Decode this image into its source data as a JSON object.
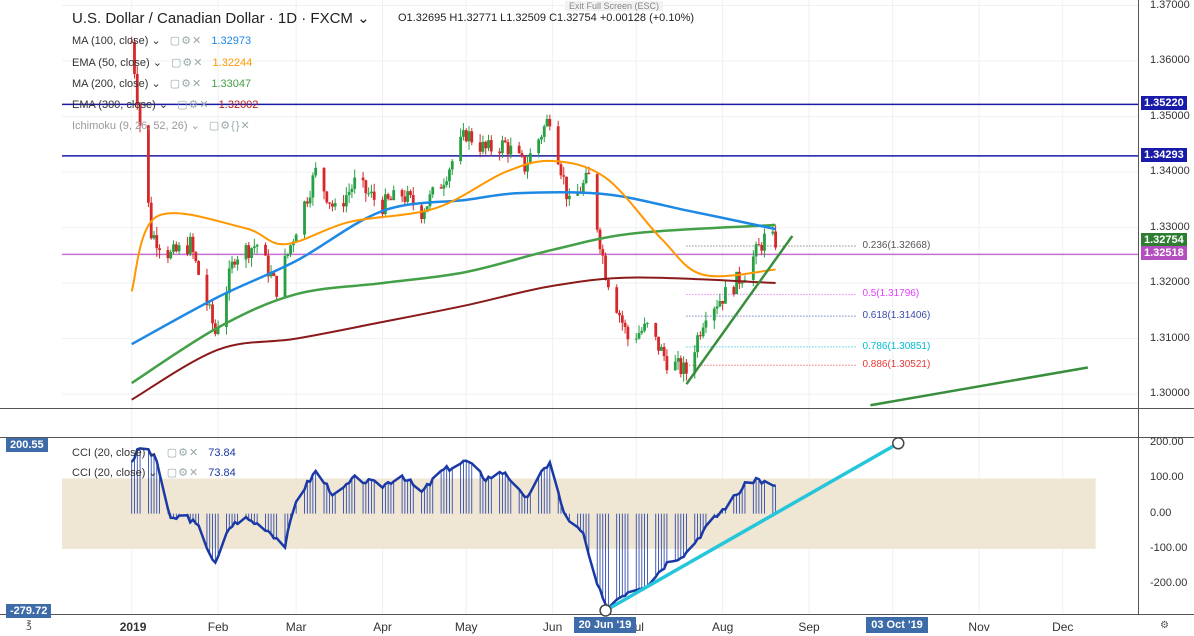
{
  "header": {
    "symbol": "U.S. Dollar / Canadian Dollar · 1D · FXCM",
    "ohlc": "O1.32695   H1.32771   L1.32509   C1.32754   +0.00128 (+0.10%)",
    "exit_full_screen": "Exit Full Screen (ESC)"
  },
  "indicators": [
    {
      "label": "MA (100, close)",
      "value": "1.32973",
      "color": "#1e88e5"
    },
    {
      "label": "EMA (50, close)",
      "value": "1.32244",
      "color": "#ff9800"
    },
    {
      "label": "MA (200, close)",
      "value": "1.33047",
      "color": "#43a047"
    },
    {
      "label": "EMA (300, close)",
      "value": "1.32002",
      "color": "#b71c1c"
    },
    {
      "label": "Ichimoku (9, 26, 52, 26)",
      "value": "",
      "color": "#888888"
    }
  ],
  "lower_indicators": [
    {
      "label": "CCI (20, close)",
      "value": "73.84"
    },
    {
      "label": "CCI (20, close)",
      "value": "73.84"
    }
  ],
  "price_axis": {
    "ticks": [
      "1.37000",
      "1.36000",
      "1.35000",
      "1.34000",
      "1.33000",
      "1.32000",
      "1.31000",
      "1.30000"
    ],
    "badges": [
      {
        "text": "1.35220",
        "color": "#1a1aa8",
        "price": 1.3522
      },
      {
        "text": "1.34293",
        "color": "#1a1aa8",
        "price": 1.34293
      },
      {
        "text": "1.32754",
        "color": "#2e7d32",
        "price": 1.32754
      },
      {
        "text": "1.32518",
        "color": "#b44fc0",
        "price": 1.32518
      }
    ]
  },
  "cci_axis": {
    "ticks": [
      "200.00",
      "100.00",
      "0.00",
      "-100.00",
      "-200.00"
    ],
    "left_badges": [
      "200.55",
      "-279.72"
    ]
  },
  "time_axis": {
    "labels": [
      "2019",
      "Feb",
      "Mar",
      "Apr",
      "May",
      "Jun",
      "Jul",
      "Aug",
      "Sep",
      "Oct",
      "Nov",
      "Dec"
    ],
    "badges": [
      "20 Jun '19",
      "03 Oct '19"
    ]
  },
  "fibonacci": [
    {
      "label": "0.236(1.32668)",
      "color": "#555555"
    },
    {
      "label": "0.5(1.31796)",
      "color": "#e040fb"
    },
    {
      "label": "0.618(1.31406)",
      "color": "#3949ab"
    },
    {
      "label": "0.786(1.30851)",
      "color": "#00bcd4"
    },
    {
      "label": "0.886(1.30521)",
      "color": "#e53935"
    }
  ],
  "chart_data": {
    "type": "candlestick",
    "title": "U.S. Dollar / Canadian Dollar · 1D · FXCM",
    "ylim": [
      1.2975,
      1.371
    ],
    "horizontal_levels": [
      1.3522,
      1.34293,
      1.32518
    ],
    "fib_levels": [
      1.32668,
      1.31796,
      1.31406,
      1.30851,
      1.30521
    ],
    "close_path": [
      [
        "2019-01-01",
        1.3635
      ],
      [
        "2019-01-08",
        1.329
      ],
      [
        "2019-01-15",
        1.325
      ],
      [
        "2019-01-22",
        1.327
      ],
      [
        "2019-01-31",
        1.311
      ],
      [
        "2019-02-07",
        1.325
      ],
      [
        "2019-02-15",
        1.327
      ],
      [
        "2019-02-22",
        1.319
      ],
      [
        "2019-03-01",
        1.33
      ],
      [
        "2019-03-08",
        1.34
      ],
      [
        "2019-03-15",
        1.333
      ],
      [
        "2019-03-22",
        1.338
      ],
      [
        "2019-04-01",
        1.334
      ],
      [
        "2019-04-08",
        1.336
      ],
      [
        "2019-04-15",
        1.333
      ],
      [
        "2019-04-22",
        1.338
      ],
      [
        "2019-05-01",
        1.347
      ],
      [
        "2019-05-08",
        1.344
      ],
      [
        "2019-05-15",
        1.345
      ],
      [
        "2019-05-22",
        1.341
      ],
      [
        "2019-05-31",
        1.35
      ],
      [
        "2019-06-07",
        1.334
      ],
      [
        "2019-06-14",
        1.339
      ],
      [
        "2019-06-20",
        1.322
      ],
      [
        "2019-06-28",
        1.31
      ],
      [
        "2019-07-05",
        1.312
      ],
      [
        "2019-07-12",
        1.306
      ],
      [
        "2019-07-19",
        1.304
      ],
      [
        "2019-07-26",
        1.315
      ],
      [
        "2019-08-02",
        1.318
      ],
      [
        "2019-08-09",
        1.322
      ],
      [
        "2019-08-16",
        1.328
      ],
      [
        "2019-08-20",
        1.32754
      ]
    ],
    "ma100": [
      [
        "2019-01-01",
        1.309
      ],
      [
        "2019-02-01",
        1.3175
      ],
      [
        "2019-03-01",
        1.324
      ],
      [
        "2019-04-01",
        1.333
      ],
      [
        "2019-05-01",
        1.335
      ],
      [
        "2019-05-20",
        1.3362
      ],
      [
        "2019-06-20",
        1.336
      ],
      [
        "2019-07-20",
        1.333
      ],
      [
        "2019-08-20",
        1.32973
      ]
    ],
    "ema50": [
      [
        "2019-01-01",
        1.3185
      ],
      [
        "2019-01-10",
        1.332
      ],
      [
        "2019-02-10",
        1.33
      ],
      [
        "2019-02-25",
        1.327
      ],
      [
        "2019-03-20",
        1.331
      ],
      [
        "2019-04-20",
        1.3335
      ],
      [
        "2019-05-15",
        1.34
      ],
      [
        "2019-06-01",
        1.342
      ],
      [
        "2019-06-20",
        1.339
      ],
      [
        "2019-07-10",
        1.328
      ],
      [
        "2019-07-25",
        1.3215
      ],
      [
        "2019-08-20",
        1.32244
      ]
    ],
    "ma200": [
      [
        "2019-01-01",
        1.302
      ],
      [
        "2019-02-01",
        1.312
      ],
      [
        "2019-03-01",
        1.318
      ],
      [
        "2019-04-01",
        1.32
      ],
      [
        "2019-05-01",
        1.322
      ],
      [
        "2019-06-01",
        1.326
      ],
      [
        "2019-07-01",
        1.329
      ],
      [
        "2019-08-20",
        1.33047
      ]
    ],
    "ema300": [
      [
        "2019-01-01",
        1.299
      ],
      [
        "2019-02-01",
        1.308
      ],
      [
        "2019-03-01",
        1.31
      ],
      [
        "2019-04-01",
        1.313
      ],
      [
        "2019-05-01",
        1.316
      ],
      [
        "2019-06-01",
        1.3195
      ],
      [
        "2019-07-01",
        1.321
      ],
      [
        "2019-08-20",
        1.32002
      ]
    ],
    "trendlines": [
      {
        "from": [
          "2019-07-19",
          1.3018
        ],
        "to": [
          "2019-08-26",
          1.3285
        ],
        "color": "#388e3c"
      },
      {
        "from": [
          "2019-09-23",
          1.298
        ],
        "to": [
          "2019-12-10",
          1.3048
        ],
        "color": "#388e3c"
      }
    ],
    "cci": {
      "ylim": [
        -285,
        215
      ],
      "band": [
        -100,
        100
      ],
      "values": [
        [
          "2019-01-01",
          150
        ],
        [
          "2019-01-05",
          200
        ],
        [
          "2019-01-10",
          150
        ],
        [
          "2019-01-15",
          -20
        ],
        [
          "2019-01-20",
          0
        ],
        [
          "2019-01-25",
          -40
        ],
        [
          "2019-01-31",
          -145
        ],
        [
          "2019-02-05",
          -40
        ],
        [
          "2019-02-10",
          -10
        ],
        [
          "2019-02-18",
          -40
        ],
        [
          "2019-02-25",
          -90
        ],
        [
          "2019-03-01",
          40
        ],
        [
          "2019-03-08",
          120
        ],
        [
          "2019-03-15",
          50
        ],
        [
          "2019-03-22",
          100
        ],
        [
          "2019-04-01",
          80
        ],
        [
          "2019-04-08",
          110
        ],
        [
          "2019-04-15",
          60
        ],
        [
          "2019-04-22",
          120
        ],
        [
          "2019-05-01",
          150
        ],
        [
          "2019-05-08",
          100
        ],
        [
          "2019-05-15",
          120
        ],
        [
          "2019-05-22",
          40
        ],
        [
          "2019-05-31",
          150
        ],
        [
          "2019-06-05",
          0
        ],
        [
          "2019-06-12",
          -60
        ],
        [
          "2019-06-16",
          -180
        ],
        [
          "2019-06-20",
          -265
        ],
        [
          "2019-06-28",
          -220
        ],
        [
          "2019-07-05",
          -200
        ],
        [
          "2019-07-12",
          -140
        ],
        [
          "2019-07-19",
          -110
        ],
        [
          "2019-07-26",
          -40
        ],
        [
          "2019-08-02",
          20
        ],
        [
          "2019-08-09",
          80
        ],
        [
          "2019-08-13",
          100
        ],
        [
          "2019-08-20",
          73.84
        ]
      ],
      "trendline": {
        "from": [
          "2019-06-20",
          -275
        ],
        "to": [
          "2019-10-03",
          200
        ]
      }
    }
  }
}
